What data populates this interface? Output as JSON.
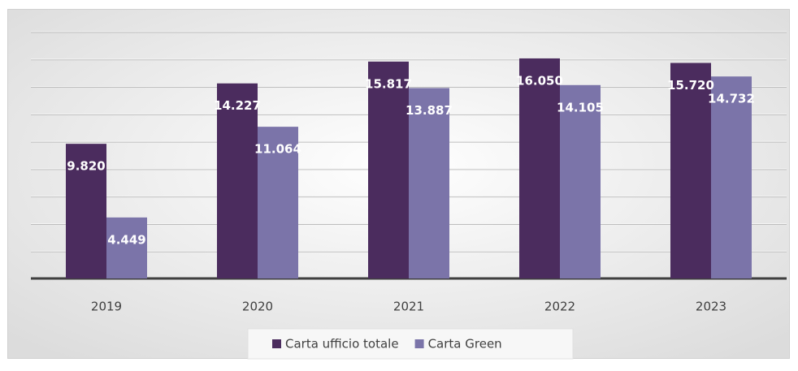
{
  "chart_data": {
    "type": "bar",
    "categories": [
      "2019",
      "2020",
      "2021",
      "2022",
      "2023"
    ],
    "series": [
      {
        "name": "Carta ufficio totale",
        "color": "#4b2c5e",
        "values": [
          9820,
          14227,
          15817,
          16050,
          15720
        ],
        "value_labels": [
          "9.820",
          "14.227",
          "15.817",
          "16.050",
          "15.720"
        ]
      },
      {
        "name": "Carta Green",
        "color": "#7b74a9",
        "values": [
          4449,
          11064,
          13887,
          14105,
          14732
        ],
        "value_labels": [
          "4.449",
          "11.064",
          "13.887",
          "14.105",
          "14.732"
        ]
      }
    ],
    "ylim": [
      0,
      18000
    ],
    "yticks": [
      0,
      2000,
      4000,
      6000,
      8000,
      10000,
      12000,
      14000,
      16000,
      18000
    ],
    "grid": true,
    "legend": "bottom"
  }
}
